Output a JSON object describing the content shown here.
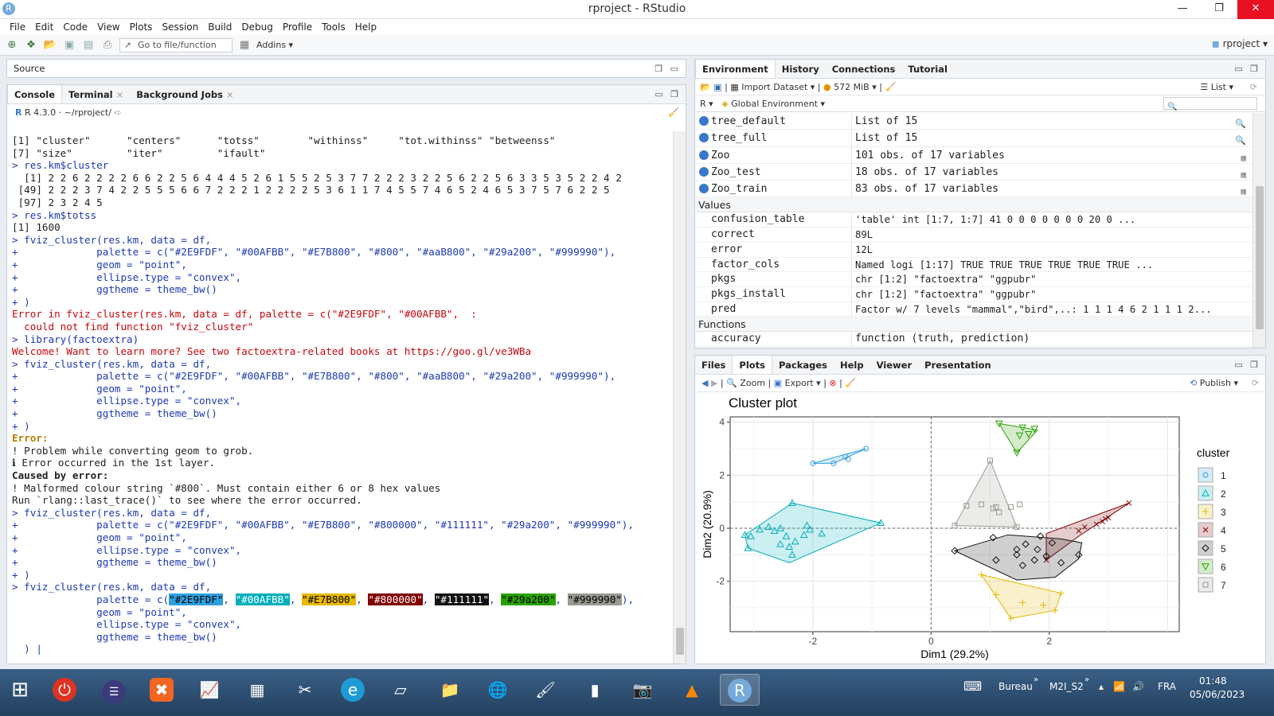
{
  "window": {
    "title": "rproject - RStudio",
    "app_icon": "R"
  },
  "menu": [
    "File",
    "Edit",
    "Code",
    "View",
    "Plots",
    "Session",
    "Build",
    "Debug",
    "Profile",
    "Tools",
    "Help"
  ],
  "toolbar": {
    "goto_placeholder": "Go to file/function",
    "addins": "Addins",
    "project": "rproject"
  },
  "source_pane": {
    "title": "Source"
  },
  "console_pane": {
    "tabs": [
      "Console",
      "Terminal",
      "Background Jobs"
    ],
    "r_version": "R 4.3.0",
    "path": "~/rproject/",
    "lines": [
      {
        "t": "[1] \"cluster\"      \"centers\"      \"totss\"        \"withinss\"     \"tot.withinss\" \"betweenss\"",
        "c": "c-dark"
      },
      {
        "t": "[7] \"size\"         \"iter\"         \"ifault\"",
        "c": "c-dark"
      },
      {
        "t": "> res.km$cluster",
        "c": "c-blue"
      },
      {
        "t": "  [1] 2 2 6 2 2 2 2 6 6 2 2 5 6 4 4 4 5 2 6 1 5 5 2 5 3 7 7 2 2 2 3 2 2 5 6 2 2 5 6 3 3 5 3 5 2 2 4 2",
        "c": "c-dark"
      },
      {
        "t": " [49] 2 2 2 3 7 4 2 2 5 5 5 6 6 7 2 2 2 1 2 2 2 2 5 3 6 1 1 7 4 5 5 7 4 6 5 2 4 6 5 3 7 5 7 6 2 2 5",
        "c": "c-dark"
      },
      {
        "t": " [97] 2 3 2 4 5",
        "c": "c-dark"
      },
      {
        "t": "> res.km$totss",
        "c": "c-blue"
      },
      {
        "t": "[1] 1600",
        "c": "c-dark"
      },
      {
        "t": "> fviz_cluster(res.km, data = df,",
        "c": "c-blue"
      },
      {
        "t": "+             palette = c(\"#2E9FDF\", \"#00AFBB\", \"#E7B800\", \"#800\", \"#aaB800\", \"#29a200\", \"#999990\"),",
        "c": "c-blue"
      },
      {
        "t": "+             geom = \"point\",",
        "c": "c-blue"
      },
      {
        "t": "+             ellipse.type = \"convex\",",
        "c": "c-blue"
      },
      {
        "t": "+             ggtheme = theme_bw()",
        "c": "c-blue"
      },
      {
        "t": "+ )",
        "c": "c-blue"
      },
      {
        "t": "Error in fviz_cluster(res.km, data = df, palette = c(\"#2E9FDF\", \"#00AFBB\",  :",
        "c": "c-red"
      },
      {
        "t": "  could not find function \"fviz_cluster\"",
        "c": "c-red"
      },
      {
        "t": "> library(factoextra)",
        "c": "c-blue"
      },
      {
        "t": "Welcome! Want to learn more? See two factoextra-related books at https://goo.gl/ve3WBa",
        "c": "c-red"
      },
      {
        "t": "> fviz_cluster(res.km, data = df,",
        "c": "c-blue"
      },
      {
        "t": "+             palette = c(\"#2E9FDF\", \"#00AFBB\", \"#E7B800\", \"#800\", \"#aaB800\", \"#29a200\", \"#999990\"),",
        "c": "c-blue"
      },
      {
        "t": "+             geom = \"point\",",
        "c": "c-blue"
      },
      {
        "t": "+             ellipse.type = \"convex\",",
        "c": "c-blue"
      },
      {
        "t": "+             ggtheme = theme_bw()",
        "c": "c-blue"
      },
      {
        "t": "+ )",
        "c": "c-blue"
      },
      {
        "t": "Error:",
        "c": "c-gold"
      },
      {
        "t": "! Problem while converting geom to grob.",
        "c": "c-dark"
      },
      {
        "t": "ℹ Error occurred in the 1st layer.",
        "c": "c-dark"
      },
      {
        "t": "Caused by error:",
        "c": "c-bold"
      },
      {
        "t": "! Malformed colour string `#800`. Must contain either 6 or 8 hex values",
        "c": "c-dark"
      },
      {
        "t": "Run `rlang::last_trace()` to see where the error occurred.",
        "c": "c-dark"
      },
      {
        "t": "> fviz_cluster(res.km, data = df,",
        "c": "c-blue"
      },
      {
        "t": "+             palette = c(\"#2E9FDF\", \"#00AFBB\", \"#E7B800\", \"#800000\", \"#111111\", \"#29a200\", \"#999990\"),",
        "c": "c-blue"
      },
      {
        "t": "+             geom = \"point\",",
        "c": "c-blue"
      },
      {
        "t": "+             ellipse.type = \"convex\",",
        "c": "c-blue"
      },
      {
        "t": "+             ggtheme = theme_bw()",
        "c": "c-blue"
      },
      {
        "t": "+ )",
        "c": "c-blue"
      },
      {
        "t": "> fviz_cluster(res.km, data = df,",
        "c": "c-blue"
      }
    ],
    "editing": {
      "prefix": "              palette = c(",
      "colors": [
        {
          "code": "\"#2E9FDF\"",
          "bg": "#2E9FDF",
          "fg": "#000000"
        },
        {
          "code": "\"#00AFBB\"",
          "bg": "#00AFBB",
          "fg": "#ffffff"
        },
        {
          "code": "\"#E7B800\"",
          "bg": "#E7B800",
          "fg": "#000000"
        },
        {
          "code": "\"#800000\"",
          "bg": "#800000",
          "fg": "#ffffff"
        },
        {
          "code": "\"#111111\"",
          "bg": "#111111",
          "fg": "#ffffff"
        },
        {
          "code": "\"#29a200\"",
          "bg": "#29a200",
          "fg": "#000000"
        },
        {
          "code": "\"#999990\"",
          "bg": "#999990",
          "fg": "#000000"
        }
      ],
      "suffix": "),",
      "rest": [
        "              geom = \"point\",",
        "              ellipse.type = \"convex\",",
        "              ggtheme = theme_bw()",
        "  ) |"
      ]
    }
  },
  "env_pane": {
    "tabs": [
      "Environment",
      "History",
      "Connections",
      "Tutorial"
    ],
    "import_label": "Import Dataset",
    "memory": "572 MiB",
    "view_mode": "List",
    "lang": "R",
    "scope": "Global Environment",
    "data_rows": [
      {
        "name": "tree_default",
        "value": "List of  15"
      },
      {
        "name": "tree_full",
        "value": "List of  15"
      },
      {
        "name": "Zoo",
        "value": "101 obs. of 17 variables"
      },
      {
        "name": "Zoo_test",
        "value": "18 obs. of 17 variables"
      },
      {
        "name": "Zoo_train",
        "value": "83 obs. of 17 variables"
      }
    ],
    "values_header": "Values",
    "value_rows": [
      {
        "name": "confusion_table",
        "value": "'table' int [1:7, 1:7] 41 0 0 0 0 0 0 0 20 0 ..."
      },
      {
        "name": "correct",
        "value": "89L"
      },
      {
        "name": "error",
        "value": "12L"
      },
      {
        "name": "factor_cols",
        "value": "Named logi [1:17] TRUE TRUE TRUE TRUE TRUE TRUE ..."
      },
      {
        "name": "pkgs",
        "value": "chr [1:2] \"factoextra\" \"ggpubr\""
      },
      {
        "name": "pkgs_install",
        "value": "chr [1:2] \"factoextra\" \"ggpubr\""
      },
      {
        "name": "pred",
        "value": "Factor w/ 7 levels \"mammal\",\"bird\",..: 1 1 1 4 6 2 1 1 1 2..."
      }
    ],
    "functions_header": "Functions",
    "function_rows": [
      {
        "name": "accuracy",
        "value": "function (truth, prediction)"
      }
    ]
  },
  "plots_pane": {
    "tabs": [
      "Files",
      "Plots",
      "Packages",
      "Help",
      "Viewer",
      "Presentation"
    ],
    "zoom": "Zoom",
    "export": "Export",
    "publish": "Publish"
  },
  "chart_data": {
    "type": "scatter",
    "title": "Cluster plot",
    "xlabel": "Dim1 (29.2%)",
    "ylabel": "Dim2 (20.9%)",
    "xlim": [
      -3.4,
      4.2
    ],
    "ylim": [
      -3.9,
      4.2
    ],
    "xticks": [
      -2,
      0,
      2
    ],
    "yticks": [
      -2,
      0,
      2,
      4
    ],
    "grid": true,
    "legend_title": "cluster",
    "legend_position": "right",
    "series": [
      {
        "name": "1",
        "color": "#2E9FDF",
        "points": [
          [
            -2.0,
            2.45
          ],
          [
            -1.65,
            2.45
          ],
          [
            -1.45,
            2.7
          ],
          [
            -1.1,
            3.0
          ],
          [
            -1.4,
            2.6
          ]
        ],
        "hull": [
          [
            -2.0,
            2.45
          ],
          [
            -1.65,
            2.45
          ],
          [
            -1.1,
            3.0
          ]
        ]
      },
      {
        "name": "2",
        "color": "#00AFBB",
        "points": [
          [
            -3.1,
            -0.75
          ],
          [
            -3.05,
            -0.3
          ],
          [
            -2.9,
            -0.05
          ],
          [
            -2.75,
            0.05
          ],
          [
            -2.65,
            -0.1
          ],
          [
            -2.55,
            0.0
          ],
          [
            -2.45,
            -0.3
          ],
          [
            -2.4,
            -0.7
          ],
          [
            -2.35,
            -1.0
          ],
          [
            -2.3,
            -0.5
          ],
          [
            -2.15,
            -0.25
          ],
          [
            -2.1,
            0.1
          ],
          [
            -2.05,
            -0.05
          ],
          [
            -1.85,
            -0.2
          ],
          [
            -2.55,
            -0.6
          ],
          [
            -0.85,
            0.2
          ],
          [
            -2.35,
            0.95
          ],
          [
            -3.15,
            -0.25
          ]
        ],
        "hull": [
          [
            -3.15,
            -0.25
          ],
          [
            -3.1,
            -0.75
          ],
          [
            -2.4,
            -1.3
          ],
          [
            -0.85,
            0.2
          ],
          [
            -2.35,
            0.95
          ]
        ]
      },
      {
        "name": "3",
        "color": "#E7B800",
        "points": [
          [
            0.85,
            -1.75
          ],
          [
            1.35,
            -3.4
          ],
          [
            1.55,
            -2.8
          ],
          [
            2.1,
            -3.1
          ],
          [
            2.2,
            -2.45
          ],
          [
            1.1,
            -2.5
          ],
          [
            1.9,
            -2.9
          ]
        ],
        "hull": [
          [
            0.85,
            -1.75
          ],
          [
            2.2,
            -2.45
          ],
          [
            2.1,
            -3.1
          ],
          [
            1.35,
            -3.4
          ]
        ]
      },
      {
        "name": "4",
        "color": "#800000",
        "points": [
          [
            1.95,
            -1.2
          ],
          [
            3.35,
            0.95
          ],
          [
            2.6,
            0.05
          ],
          [
            2.8,
            0.15
          ],
          [
            2.9,
            0.25
          ],
          [
            2.95,
            0.35
          ],
          [
            3.0,
            0.4
          ],
          [
            2.5,
            -0.1
          ]
        ],
        "hull": [
          [
            1.95,
            -1.2
          ],
          [
            1.95,
            -0.2
          ],
          [
            3.35,
            0.95
          ],
          [
            2.5,
            -0.3
          ]
        ]
      },
      {
        "name": "5",
        "color": "#111111",
        "points": [
          [
            0.4,
            -0.85
          ],
          [
            1.05,
            -0.35
          ],
          [
            1.1,
            -1.2
          ],
          [
            1.45,
            -1.0
          ],
          [
            1.55,
            -1.4
          ],
          [
            1.6,
            -0.6
          ],
          [
            1.75,
            -1.2
          ],
          [
            1.8,
            -0.8
          ],
          [
            1.85,
            -0.3
          ],
          [
            2.05,
            -0.55
          ],
          [
            2.2,
            -1.3
          ],
          [
            2.5,
            -1.0
          ],
          [
            1.45,
            -0.8
          ],
          [
            1.95,
            -1.05
          ]
        ],
        "hull": [
          [
            0.4,
            -0.85
          ],
          [
            1.3,
            -0.25
          ],
          [
            2.2,
            -0.4
          ],
          [
            2.55,
            -0.55
          ],
          [
            2.5,
            -1.15
          ],
          [
            2.1,
            -1.85
          ],
          [
            1.45,
            -1.95
          ]
        ]
      },
      {
        "name": "6",
        "color": "#29a200",
        "points": [
          [
            1.15,
            3.95
          ],
          [
            1.55,
            3.8
          ],
          [
            1.65,
            3.55
          ],
          [
            1.75,
            3.75
          ],
          [
            1.45,
            2.85
          ],
          [
            1.5,
            3.5
          ]
        ],
        "hull": [
          [
            1.15,
            3.95
          ],
          [
            1.8,
            3.7
          ],
          [
            1.45,
            2.85
          ]
        ]
      },
      {
        "name": "7",
        "color": "#999990",
        "points": [
          [
            1.0,
            2.55
          ],
          [
            1.35,
            0.8
          ],
          [
            1.5,
            0.9
          ],
          [
            0.6,
            0.85
          ],
          [
            0.85,
            0.9
          ],
          [
            1.05,
            0.75
          ],
          [
            1.15,
            0.6
          ],
          [
            1.45,
            0.05
          ],
          [
            1.1,
            0.8
          ],
          [
            0.4,
            0.1
          ]
        ],
        "hull": [
          [
            1.0,
            2.55
          ],
          [
            1.45,
            0.05
          ],
          [
            0.4,
            0.1
          ]
        ]
      }
    ]
  },
  "taskbar": {
    "bureau": "Bureau",
    "folder": "M2I_S2",
    "lang": "FRA",
    "time": "01:48",
    "date": "05/06/2023"
  }
}
